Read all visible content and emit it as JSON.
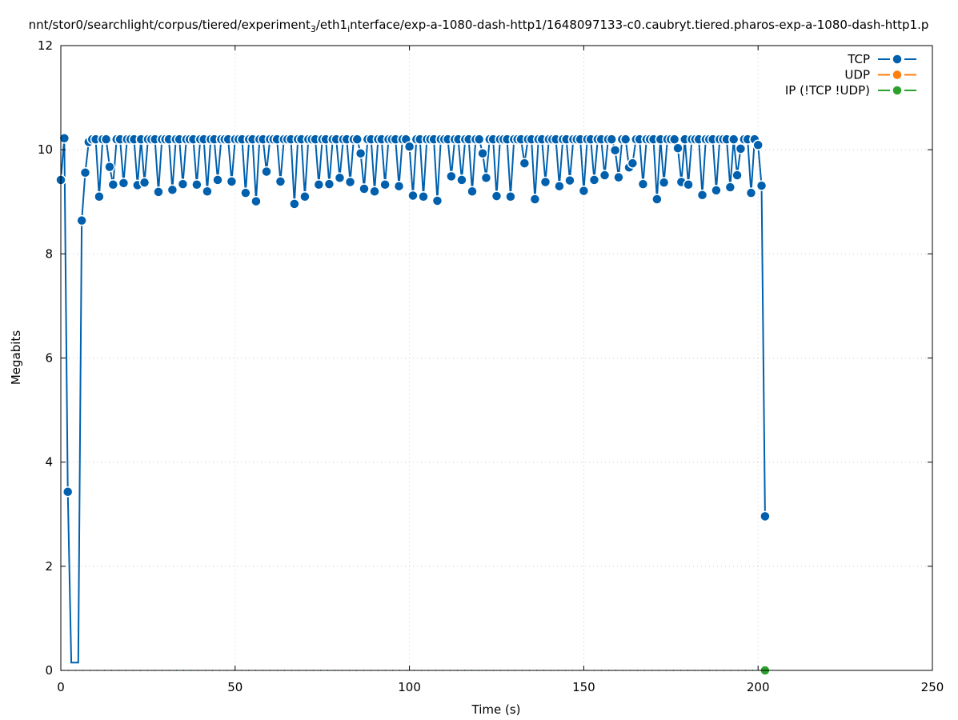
{
  "chart_data": {
    "type": "line",
    "title_parts": [
      {
        "text": "nnt/stor0/searchlight/corpus/tiered/experiment",
        "sub": false
      },
      {
        "text": "3",
        "sub": true
      },
      {
        "text": "/eth1",
        "sub": false
      },
      {
        "text": "i",
        "sub": true
      },
      {
        "text": "nterface/exp-a-1080-dash-http1/1648097133-c0.caubryt.tiered.pharos-exp-a-1080-dash-http1.p",
        "sub": false
      }
    ],
    "xlabel": "Time (s)",
    "ylabel": "Megabits",
    "xlim": [
      0,
      250
    ],
    "ylim": [
      0,
      12
    ],
    "xticks": [
      0,
      50,
      100,
      150,
      200,
      250
    ],
    "yticks": [
      0,
      2,
      4,
      6,
      8,
      10,
      12
    ],
    "grid": true,
    "legend_placement": "top-right",
    "series": [
      {
        "name": "TCP",
        "color": "#0060ad",
        "x_start": 0,
        "x_step": 1,
        "values": [
          9.42,
          10.22,
          3.43,
          0.15,
          0.15,
          0.15,
          8.64,
          9.56,
          10.15,
          10.2,
          10.2,
          9.1,
          10.2,
          10.2,
          9.67,
          9.33,
          10.2,
          10.2,
          9.36,
          10.2,
          10.2,
          10.2,
          9.32,
          10.2,
          9.37,
          10.2,
          10.2,
          10.2,
          9.19,
          10.2,
          10.2,
          10.2,
          9.23,
          10.2,
          10.2,
          9.34,
          10.2,
          10.2,
          10.2,
          9.33,
          10.2,
          10.2,
          9.2,
          10.2,
          10.2,
          9.42,
          10.2,
          10.2,
          10.2,
          9.39,
          10.2,
          10.2,
          10.2,
          9.17,
          10.2,
          10.2,
          9.01,
          10.2,
          10.2,
          9.58,
          10.2,
          10.2,
          10.2,
          9.39,
          10.2,
          10.2,
          10.2,
          8.96,
          10.2,
          10.2,
          9.1,
          10.2,
          10.2,
          10.2,
          9.33,
          10.2,
          10.2,
          9.34,
          10.2,
          10.2,
          9.46,
          10.2,
          10.2,
          9.38,
          10.2,
          10.2,
          9.93,
          9.25,
          10.2,
          10.2,
          9.2,
          10.2,
          10.2,
          9.33,
          10.2,
          10.2,
          10.2,
          9.3,
          10.2,
          10.2,
          10.06,
          9.12,
          10.2,
          10.2,
          9.1,
          10.2,
          10.2,
          10.2,
          9.02,
          10.2,
          10.2,
          10.2,
          9.49,
          10.2,
          10.2,
          9.42,
          10.2,
          10.2,
          9.2,
          10.2,
          10.2,
          9.93,
          9.46,
          10.2,
          10.2,
          9.11,
          10.2,
          10.2,
          10.2,
          9.1,
          10.2,
          10.2,
          10.2,
          9.74,
          10.2,
          10.2,
          9.05,
          10.2,
          10.2,
          9.38,
          10.2,
          10.2,
          10.2,
          9.3,
          10.2,
          10.2,
          9.41,
          10.2,
          10.2,
          10.2,
          9.21,
          10.2,
          10.2,
          9.42,
          10.2,
          10.2,
          9.51,
          10.2,
          10.2,
          9.99,
          9.47,
          10.2,
          10.2,
          9.66,
          9.74,
          10.2,
          10.2,
          9.34,
          10.2,
          10.2,
          10.2,
          9.05,
          10.2,
          9.37,
          10.2,
          10.2,
          10.2,
          10.03,
          9.38,
          10.2,
          9.33,
          10.2,
          10.2,
          10.2,
          9.13,
          10.2,
          10.2,
          10.2,
          9.22,
          10.2,
          10.2,
          10.2,
          9.28,
          10.2,
          9.51,
          10.02,
          10.2,
          10.2,
          9.17,
          10.2,
          10.09,
          9.31,
          2.96
        ]
      },
      {
        "name": "UDP",
        "color": "#ff7f0e",
        "points": []
      },
      {
        "name": "IP (!TCP  !UDP)",
        "color": "#2ca02c",
        "points": [
          [
            0,
            0
          ],
          [
            202,
            0
          ]
        ]
      }
    ]
  }
}
